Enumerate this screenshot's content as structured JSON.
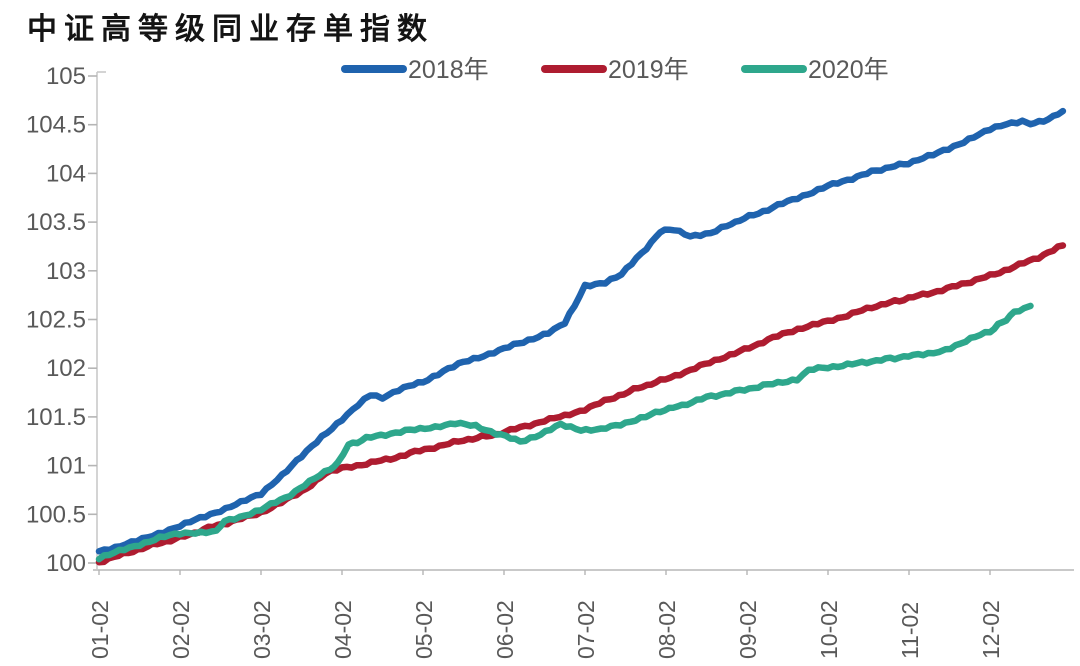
{
  "chart_data": {
    "type": "line",
    "title": "中证高等级同业存单指数",
    "xlabel": "",
    "ylabel": "",
    "ylim": [
      100,
      105
    ],
    "ytick_labels": [
      "100",
      "100.5",
      "101",
      "101.5",
      "102",
      "102.5",
      "103",
      "103.5",
      "104",
      "104.5",
      "105"
    ],
    "ytick_values": [
      100,
      100.5,
      101,
      101.5,
      102,
      102.5,
      103,
      103.5,
      104,
      104.5,
      105
    ],
    "xtick_labels": [
      "01-02",
      "02-02",
      "03-02",
      "04-02",
      "05-02",
      "06-02",
      "07-02",
      "08-02",
      "09-02",
      "10-02",
      "11-02",
      "12-02"
    ],
    "x_unit": "months_after_first_tick",
    "grid": false,
    "legend_position": "top",
    "colors": {
      "axis_line": "#c9c9c9",
      "tick_mark": "#b5b5b5",
      "tick_text": "#595959",
      "legend_text": "#595959",
      "title_text": "#141414",
      "background": "#ffffff"
    },
    "series": [
      {
        "name": "2018年",
        "color": "#1F63AE",
        "points": [
          [
            0,
            100.12
          ],
          [
            0.2,
            100.16
          ],
          [
            0.4,
            100.22
          ],
          [
            0.6,
            100.27
          ],
          [
            0.8,
            100.32
          ],
          [
            1.0,
            100.38
          ],
          [
            1.25,
            100.46
          ],
          [
            1.5,
            100.54
          ],
          [
            1.75,
            100.62
          ],
          [
            2.0,
            100.71
          ],
          [
            2.2,
            100.86
          ],
          [
            2.5,
            101.09
          ],
          [
            2.75,
            101.3
          ],
          [
            3.0,
            101.47
          ],
          [
            3.2,
            101.62
          ],
          [
            3.35,
            101.73
          ],
          [
            3.5,
            101.7
          ],
          [
            3.7,
            101.78
          ],
          [
            4.0,
            101.86
          ],
          [
            4.25,
            101.97
          ],
          [
            4.5,
            102.06
          ],
          [
            4.75,
            102.13
          ],
          [
            5.0,
            102.2
          ],
          [
            5.3,
            102.29
          ],
          [
            5.55,
            102.36
          ],
          [
            5.75,
            102.46
          ],
          [
            5.87,
            102.64
          ],
          [
            6.0,
            102.85
          ],
          [
            6.25,
            102.88
          ],
          [
            6.45,
            102.96
          ],
          [
            6.7,
            103.18
          ],
          [
            6.93,
            103.4
          ],
          [
            7.1,
            103.43
          ],
          [
            7.3,
            103.36
          ],
          [
            7.55,
            103.38
          ],
          [
            7.75,
            103.46
          ],
          [
            7.91,
            103.52
          ],
          [
            8.2,
            103.61
          ],
          [
            8.5,
            103.71
          ],
          [
            8.75,
            103.79
          ],
          [
            9.0,
            103.87
          ],
          [
            9.3,
            103.95
          ],
          [
            9.6,
            104.03
          ],
          [
            10.05,
            104.12
          ],
          [
            10.3,
            104.19
          ],
          [
            10.55,
            104.28
          ],
          [
            10.8,
            104.37
          ],
          [
            11.0,
            104.45
          ],
          [
            11.2,
            104.5
          ],
          [
            11.4,
            104.53
          ],
          [
            11.55,
            104.51
          ],
          [
            11.72,
            104.56
          ],
          [
            11.9,
            104.64
          ]
        ]
      },
      {
        "name": "2019年",
        "color": "#AE1C30",
        "points": [
          [
            0,
            100.01
          ],
          [
            0.3,
            100.09
          ],
          [
            0.6,
            100.17
          ],
          [
            1.0,
            100.26
          ],
          [
            1.35,
            100.36
          ],
          [
            1.7,
            100.44
          ],
          [
            2.0,
            100.52
          ],
          [
            2.25,
            100.62
          ],
          [
            2.5,
            100.73
          ],
          [
            2.8,
            100.92
          ],
          [
            3.0,
            100.97
          ],
          [
            3.3,
            101.02
          ],
          [
            3.6,
            101.07
          ],
          [
            3.9,
            101.14
          ],
          [
            4.2,
            101.2
          ],
          [
            4.5,
            101.26
          ],
          [
            4.9,
            101.32
          ],
          [
            5.2,
            101.39
          ],
          [
            5.5,
            101.46
          ],
          [
            5.75,
            101.51
          ],
          [
            6.0,
            101.58
          ],
          [
            6.3,
            101.68
          ],
          [
            6.6,
            101.78
          ],
          [
            6.93,
            101.87
          ],
          [
            7.3,
            101.98
          ],
          [
            7.6,
            102.08
          ],
          [
            7.91,
            102.17
          ],
          [
            8.2,
            102.27
          ],
          [
            8.5,
            102.37
          ],
          [
            8.75,
            102.43
          ],
          [
            9.0,
            102.48
          ],
          [
            9.3,
            102.56
          ],
          [
            9.6,
            102.64
          ],
          [
            10.05,
            102.73
          ],
          [
            10.35,
            102.79
          ],
          [
            10.65,
            102.86
          ],
          [
            11.0,
            102.95
          ],
          [
            11.3,
            103.04
          ],
          [
            11.6,
            103.14
          ],
          [
            11.9,
            103.26
          ]
        ]
      },
      {
        "name": "2020年",
        "color": "#2EA78C",
        "points": [
          [
            0,
            100.05
          ],
          [
            0.25,
            100.12
          ],
          [
            0.5,
            100.19
          ],
          [
            0.75,
            100.26
          ],
          [
            1.0,
            100.3
          ],
          [
            1.45,
            100.33
          ],
          [
            1.55,
            100.43
          ],
          [
            1.8,
            100.49
          ],
          [
            2.0,
            100.55
          ],
          [
            2.3,
            100.67
          ],
          [
            2.6,
            100.83
          ],
          [
            2.85,
            100.97
          ],
          [
            2.95,
            101.02
          ],
          [
            3.08,
            101.21
          ],
          [
            3.3,
            101.28
          ],
          [
            3.6,
            101.33
          ],
          [
            3.9,
            101.37
          ],
          [
            4.15,
            101.4
          ],
          [
            4.4,
            101.43
          ],
          [
            4.65,
            101.41
          ],
          [
            4.9,
            101.33
          ],
          [
            5.2,
            101.25
          ],
          [
            5.45,
            101.32
          ],
          [
            5.7,
            101.42
          ],
          [
            5.95,
            101.37
          ],
          [
            6.2,
            101.37
          ],
          [
            6.5,
            101.44
          ],
          [
            6.75,
            101.5
          ],
          [
            6.93,
            101.56
          ],
          [
            7.2,
            101.62
          ],
          [
            7.5,
            101.7
          ],
          [
            7.91,
            101.77
          ],
          [
            8.2,
            101.82
          ],
          [
            8.5,
            101.87
          ],
          [
            8.62,
            101.88
          ],
          [
            8.76,
            101.98
          ],
          [
            9.0,
            102.01
          ],
          [
            9.3,
            102.04
          ],
          [
            9.6,
            102.08
          ],
          [
            10.05,
            102.13
          ],
          [
            10.3,
            102.16
          ],
          [
            10.45,
            102.19
          ],
          [
            10.7,
            102.28
          ],
          [
            11.0,
            102.38
          ],
          [
            11.15,
            102.47
          ],
          [
            11.3,
            102.57
          ],
          [
            11.42,
            102.61
          ],
          [
            11.5,
            102.64
          ]
        ]
      }
    ]
  }
}
